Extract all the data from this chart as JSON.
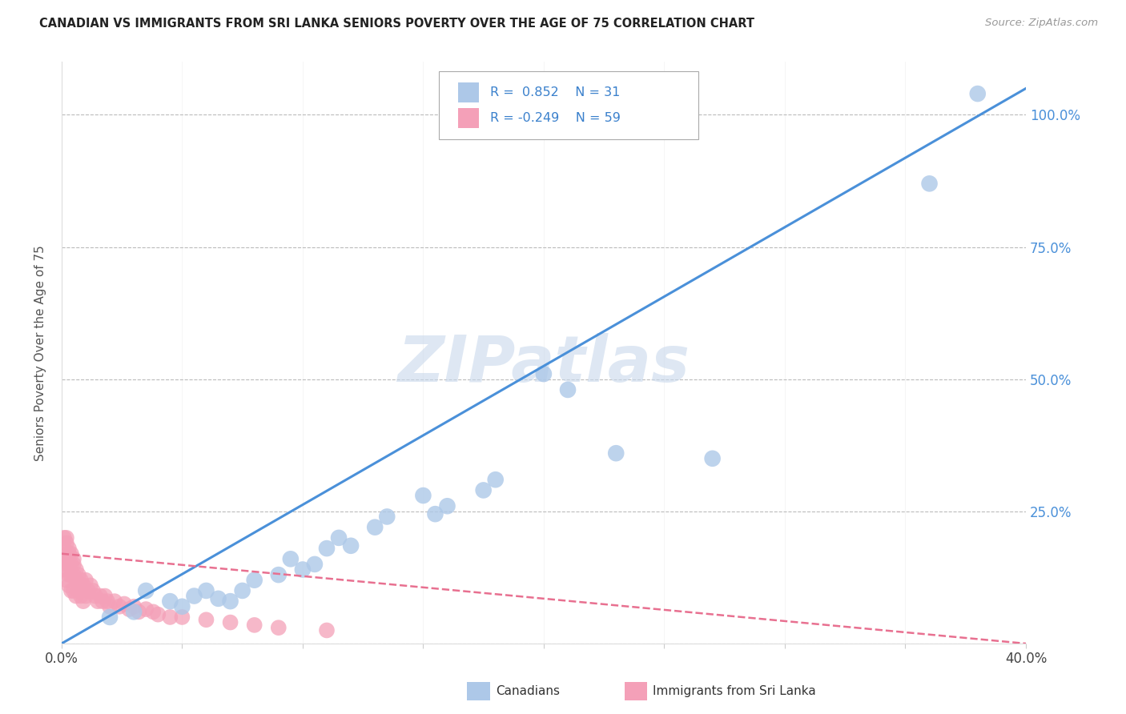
{
  "title": "CANADIAN VS IMMIGRANTS FROM SRI LANKA SENIORS POVERTY OVER THE AGE OF 75 CORRELATION CHART",
  "source": "Source: ZipAtlas.com",
  "ylabel": "Seniors Poverty Over the Age of 75",
  "xlim": [
    0.0,
    0.4
  ],
  "ylim": [
    0.0,
    1.1
  ],
  "xticks": [
    0.0,
    0.05,
    0.1,
    0.15,
    0.2,
    0.25,
    0.3,
    0.35,
    0.4
  ],
  "xticklabels": [
    "0.0%",
    "",
    "",
    "",
    "",
    "",
    "",
    "",
    "40.0%"
  ],
  "yticks": [
    0.0,
    0.25,
    0.5,
    0.75,
    1.0
  ],
  "yticklabels": [
    "",
    "25.0%",
    "50.0%",
    "75.0%",
    "100.0%"
  ],
  "canadians_R": 0.852,
  "canadians_N": 31,
  "srilanka_R": -0.249,
  "srilanka_N": 59,
  "canadians_color": "#adc8e8",
  "srilanka_color": "#f4a0b8",
  "canadians_line_color": "#4a90d9",
  "srilanka_line_color": "#e87090",
  "grid_color": "#bbbbbb",
  "background_color": "#ffffff",
  "watermark": "ZIPatlas",
  "watermark_color": "#c8d8ec",
  "canadians_x": [
    0.02,
    0.03,
    0.035,
    0.045,
    0.05,
    0.055,
    0.06,
    0.065,
    0.07,
    0.075,
    0.08,
    0.09,
    0.095,
    0.1,
    0.105,
    0.11,
    0.115,
    0.12,
    0.13,
    0.135,
    0.15,
    0.155,
    0.16,
    0.175,
    0.18,
    0.2,
    0.21,
    0.23,
    0.27,
    0.36,
    0.38
  ],
  "canadians_y": [
    0.05,
    0.06,
    0.1,
    0.08,
    0.07,
    0.09,
    0.1,
    0.085,
    0.08,
    0.1,
    0.12,
    0.13,
    0.16,
    0.14,
    0.15,
    0.18,
    0.2,
    0.185,
    0.22,
    0.24,
    0.28,
    0.245,
    0.26,
    0.29,
    0.31,
    0.51,
    0.48,
    0.36,
    0.35,
    0.87,
    1.04
  ],
  "srilanka_x": [
    0.001,
    0.001,
    0.001,
    0.001,
    0.002,
    0.002,
    0.002,
    0.002,
    0.002,
    0.003,
    0.003,
    0.003,
    0.003,
    0.003,
    0.004,
    0.004,
    0.004,
    0.004,
    0.005,
    0.005,
    0.005,
    0.005,
    0.006,
    0.006,
    0.006,
    0.007,
    0.007,
    0.008,
    0.008,
    0.009,
    0.009,
    0.01,
    0.01,
    0.011,
    0.012,
    0.013,
    0.014,
    0.015,
    0.016,
    0.017,
    0.018,
    0.019,
    0.02,
    0.022,
    0.024,
    0.026,
    0.028,
    0.03,
    0.032,
    0.035,
    0.038,
    0.04,
    0.045,
    0.05,
    0.06,
    0.07,
    0.08,
    0.09,
    0.11
  ],
  "srilanka_y": [
    0.2,
    0.18,
    0.16,
    0.14,
    0.2,
    0.19,
    0.16,
    0.15,
    0.12,
    0.18,
    0.17,
    0.15,
    0.13,
    0.11,
    0.17,
    0.15,
    0.13,
    0.1,
    0.16,
    0.15,
    0.13,
    0.1,
    0.14,
    0.12,
    0.09,
    0.13,
    0.1,
    0.12,
    0.09,
    0.11,
    0.08,
    0.12,
    0.09,
    0.1,
    0.11,
    0.1,
    0.09,
    0.08,
    0.09,
    0.08,
    0.09,
    0.08,
    0.07,
    0.08,
    0.07,
    0.075,
    0.065,
    0.07,
    0.06,
    0.065,
    0.06,
    0.055,
    0.05,
    0.05,
    0.045,
    0.04,
    0.035,
    0.03,
    0.025
  ],
  "ca_line_x0": 0.0,
  "ca_line_y0": 0.0,
  "ca_line_x1": 0.4,
  "ca_line_y1": 1.05,
  "sl_line_x0": 0.0,
  "sl_line_y0": 0.17,
  "sl_line_x1": 0.4,
  "sl_line_y1": 0.0
}
